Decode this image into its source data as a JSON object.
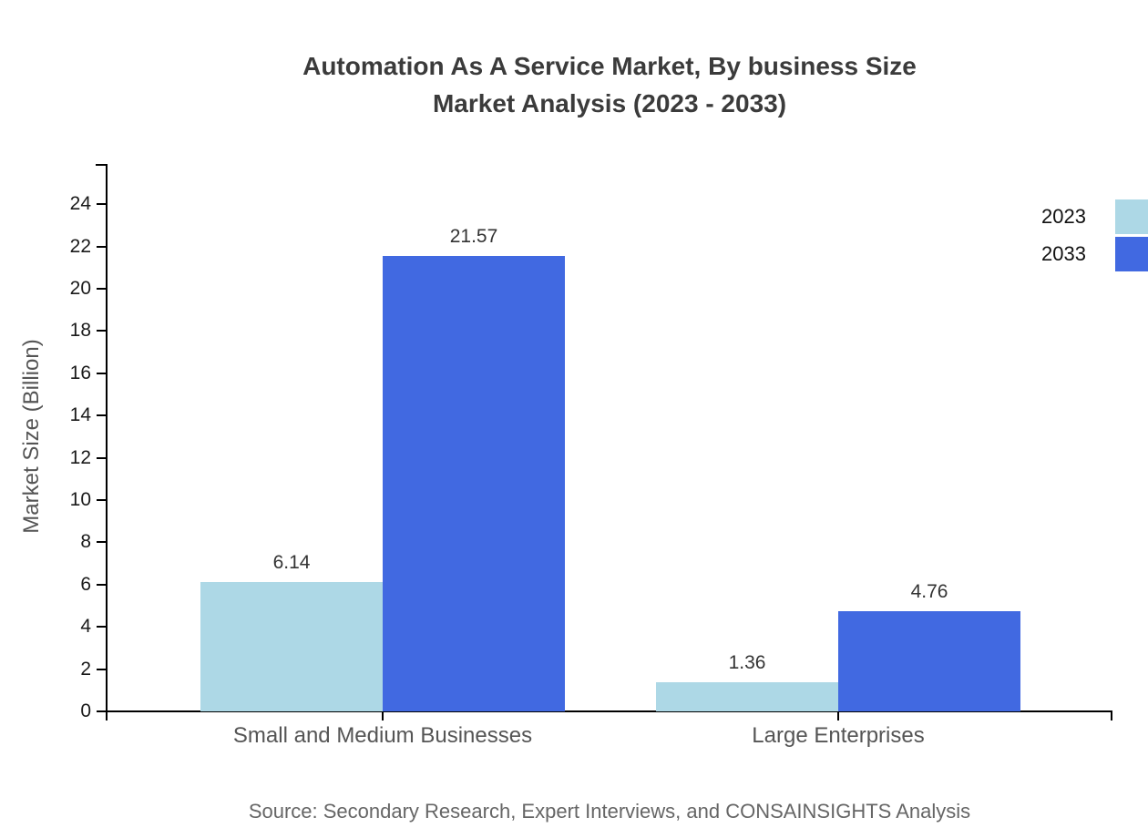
{
  "title": {
    "line1": "Automation As A Service Market, By business Size",
    "line2": "Market Analysis (2023 - 2033)"
  },
  "source": "Source: Secondary Research, Expert Interviews, and CONSAINSIGHTS Analysis",
  "colors": {
    "series_2023": "#ADD8E6",
    "series_2033": "#4169E1",
    "axis": "#000000",
    "title_text": "#3B3B3B",
    "category_text": "#555555",
    "tick_text": "#1A1A1A",
    "source_text": "#666666",
    "background": "#FFFFFF"
  },
  "chart_data": {
    "type": "bar",
    "title": "Automation As A Service Market, By business Size Market Analysis (2023 - 2033)",
    "categories": [
      "Small and Medium Businesses",
      "Large Enterprises"
    ],
    "series": [
      {
        "name": "2023",
        "color": "#ADD8E6",
        "values": [
          6.14,
          1.36
        ]
      },
      {
        "name": "2033",
        "color": "#4169E1",
        "values": [
          21.57,
          4.76
        ]
      }
    ],
    "data_labels": [
      [
        "6.14",
        "1.36"
      ],
      [
        "21.57",
        "4.76"
      ]
    ],
    "xlabel": "",
    "ylabel": "Market Size (Billion)",
    "ylim": [
      0,
      25
    ],
    "yticks": [
      0,
      2,
      4,
      6,
      8,
      10,
      12,
      14,
      16,
      18,
      20,
      22,
      24
    ],
    "grid": false,
    "legend_position": "top-right-edge"
  }
}
